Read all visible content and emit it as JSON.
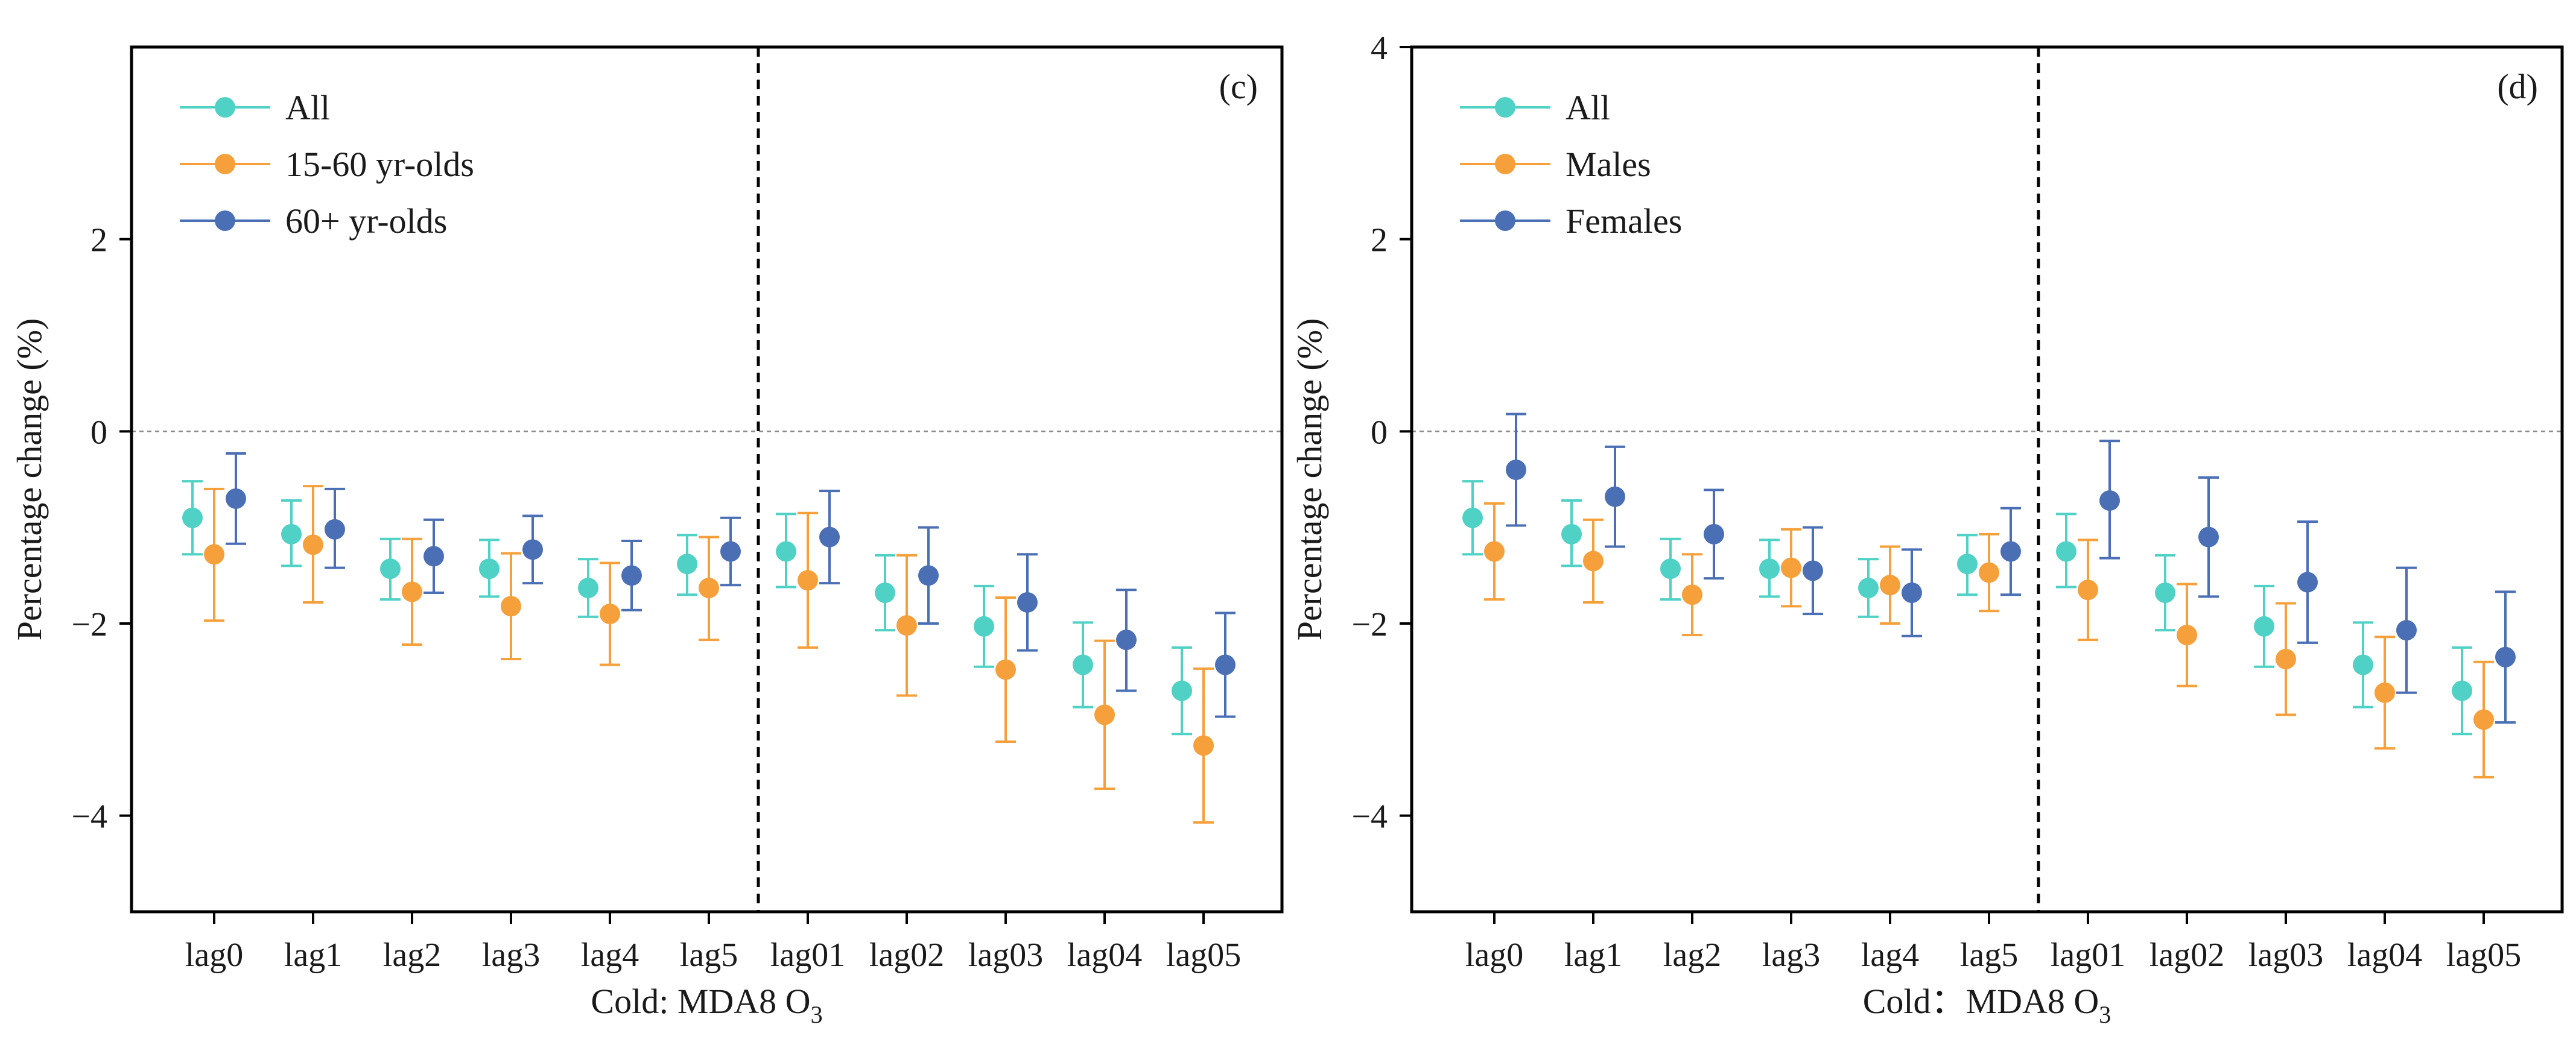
{
  "chart_data": [
    {
      "type": "errorbar",
      "panel_label": "(c)",
      "xlabel": "Cold: MDA8 O",
      "xlabel_subscript": "3",
      "ylabel": "Percentage change (%)",
      "ylim": [
        -5,
        4
      ],
      "yticks": [
        -4,
        -2,
        0,
        2
      ],
      "ytick_labels": [
        "−4",
        "−2",
        "0",
        "2"
      ],
      "categories": [
        "lag0",
        "lag1",
        "lag2",
        "lag3",
        "lag4",
        "lag5",
        "lag01",
        "lag02",
        "lag03",
        "lag04",
        "lag05"
      ],
      "divider_after_index": 5,
      "reference_line": 0,
      "series": [
        {
          "name": "All",
          "color": "#4FD1C5",
          "values": [
            -0.9,
            -1.07,
            -1.43,
            -1.43,
            -1.63,
            -1.38,
            -1.25,
            -1.68,
            -2.03,
            -2.43,
            -2.7
          ],
          "lower": [
            -1.28,
            -1.4,
            -1.75,
            -1.72,
            -1.93,
            -1.7,
            -1.62,
            -2.07,
            -2.45,
            -2.87,
            -3.15
          ],
          "upper": [
            -0.52,
            -0.72,
            -1.12,
            -1.13,
            -1.33,
            -1.08,
            -0.86,
            -1.29,
            -1.61,
            -1.99,
            -2.25
          ]
        },
        {
          "name": "15-60 yr-olds",
          "color": "#F5A03A",
          "values": [
            -1.28,
            -1.18,
            -1.67,
            -1.82,
            -1.9,
            -1.63,
            -1.55,
            -2.02,
            -2.48,
            -2.95,
            -3.27
          ],
          "lower": [
            -1.97,
            -1.78,
            -2.22,
            -2.37,
            -2.43,
            -2.17,
            -2.25,
            -2.75,
            -3.23,
            -3.72,
            -4.07
          ],
          "upper": [
            -0.6,
            -0.57,
            -1.12,
            -1.27,
            -1.37,
            -1.1,
            -0.85,
            -1.29,
            -1.73,
            -2.18,
            -2.47
          ]
        },
        {
          "name": "60+ yr-olds",
          "color": "#4A6FB5",
          "values": [
            -0.7,
            -1.02,
            -1.3,
            -1.23,
            -1.5,
            -1.25,
            -1.1,
            -1.5,
            -1.78,
            -2.17,
            -2.43
          ],
          "lower": [
            -1.17,
            -1.42,
            -1.68,
            -1.58,
            -1.86,
            -1.6,
            -1.58,
            -2.0,
            -2.28,
            -2.7,
            -2.97
          ],
          "upper": [
            -0.23,
            -0.6,
            -0.92,
            -0.88,
            -1.14,
            -0.9,
            -0.62,
            -1.0,
            -1.28,
            -1.65,
            -1.89
          ]
        }
      ]
    },
    {
      "type": "errorbar",
      "panel_label": "(d)",
      "xlabel": "Cold：MDA8 O",
      "xlabel_subscript": "3",
      "ylabel": "Percentage change (%)",
      "ylim": [
        -5,
        4
      ],
      "yticks": [
        -4,
        -2,
        0,
        2,
        4
      ],
      "ytick_labels": [
        "−4",
        "−2",
        "0",
        "2",
        "4"
      ],
      "categories": [
        "lag0",
        "lag1",
        "lag2",
        "lag3",
        "lag4",
        "lag5",
        "lag01",
        "lag02",
        "lag03",
        "lag04",
        "lag05"
      ],
      "divider_after_index": 5,
      "reference_line": 0,
      "series": [
        {
          "name": "All",
          "color": "#4FD1C5",
          "values": [
            -0.9,
            -1.07,
            -1.43,
            -1.43,
            -1.63,
            -1.38,
            -1.25,
            -1.68,
            -2.03,
            -2.43,
            -2.7
          ],
          "lower": [
            -1.28,
            -1.4,
            -1.75,
            -1.72,
            -1.93,
            -1.7,
            -1.62,
            -2.07,
            -2.45,
            -2.87,
            -3.15
          ],
          "upper": [
            -0.52,
            -0.72,
            -1.12,
            -1.13,
            -1.33,
            -1.08,
            -0.86,
            -1.29,
            -1.61,
            -1.99,
            -2.25
          ]
        },
        {
          "name": "Males",
          "color": "#F5A03A",
          "values": [
            -1.25,
            -1.35,
            -1.7,
            -1.42,
            -1.6,
            -1.47,
            -1.65,
            -2.12,
            -2.37,
            -2.72,
            -3.0
          ],
          "lower": [
            -1.75,
            -1.78,
            -2.12,
            -1.82,
            -2.0,
            -1.87,
            -2.17,
            -2.65,
            -2.95,
            -3.3,
            -3.6
          ],
          "upper": [
            -0.75,
            -0.92,
            -1.28,
            -1.02,
            -1.2,
            -1.07,
            -1.13,
            -1.59,
            -1.79,
            -2.14,
            -2.4
          ]
        },
        {
          "name": "Females",
          "color": "#4A6FB5",
          "values": [
            -0.4,
            -0.68,
            -1.07,
            -1.45,
            -1.68,
            -1.25,
            -0.72,
            -1.1,
            -1.57,
            -2.07,
            -2.35
          ],
          "lower": [
            -0.98,
            -1.2,
            -1.53,
            -1.9,
            -2.13,
            -1.7,
            -1.32,
            -1.72,
            -2.2,
            -2.72,
            -3.03
          ],
          "upper": [
            0.18,
            -0.16,
            -0.61,
            -1.0,
            -1.23,
            -0.8,
            -0.1,
            -0.48,
            -0.94,
            -1.42,
            -1.67
          ]
        }
      ]
    }
  ]
}
